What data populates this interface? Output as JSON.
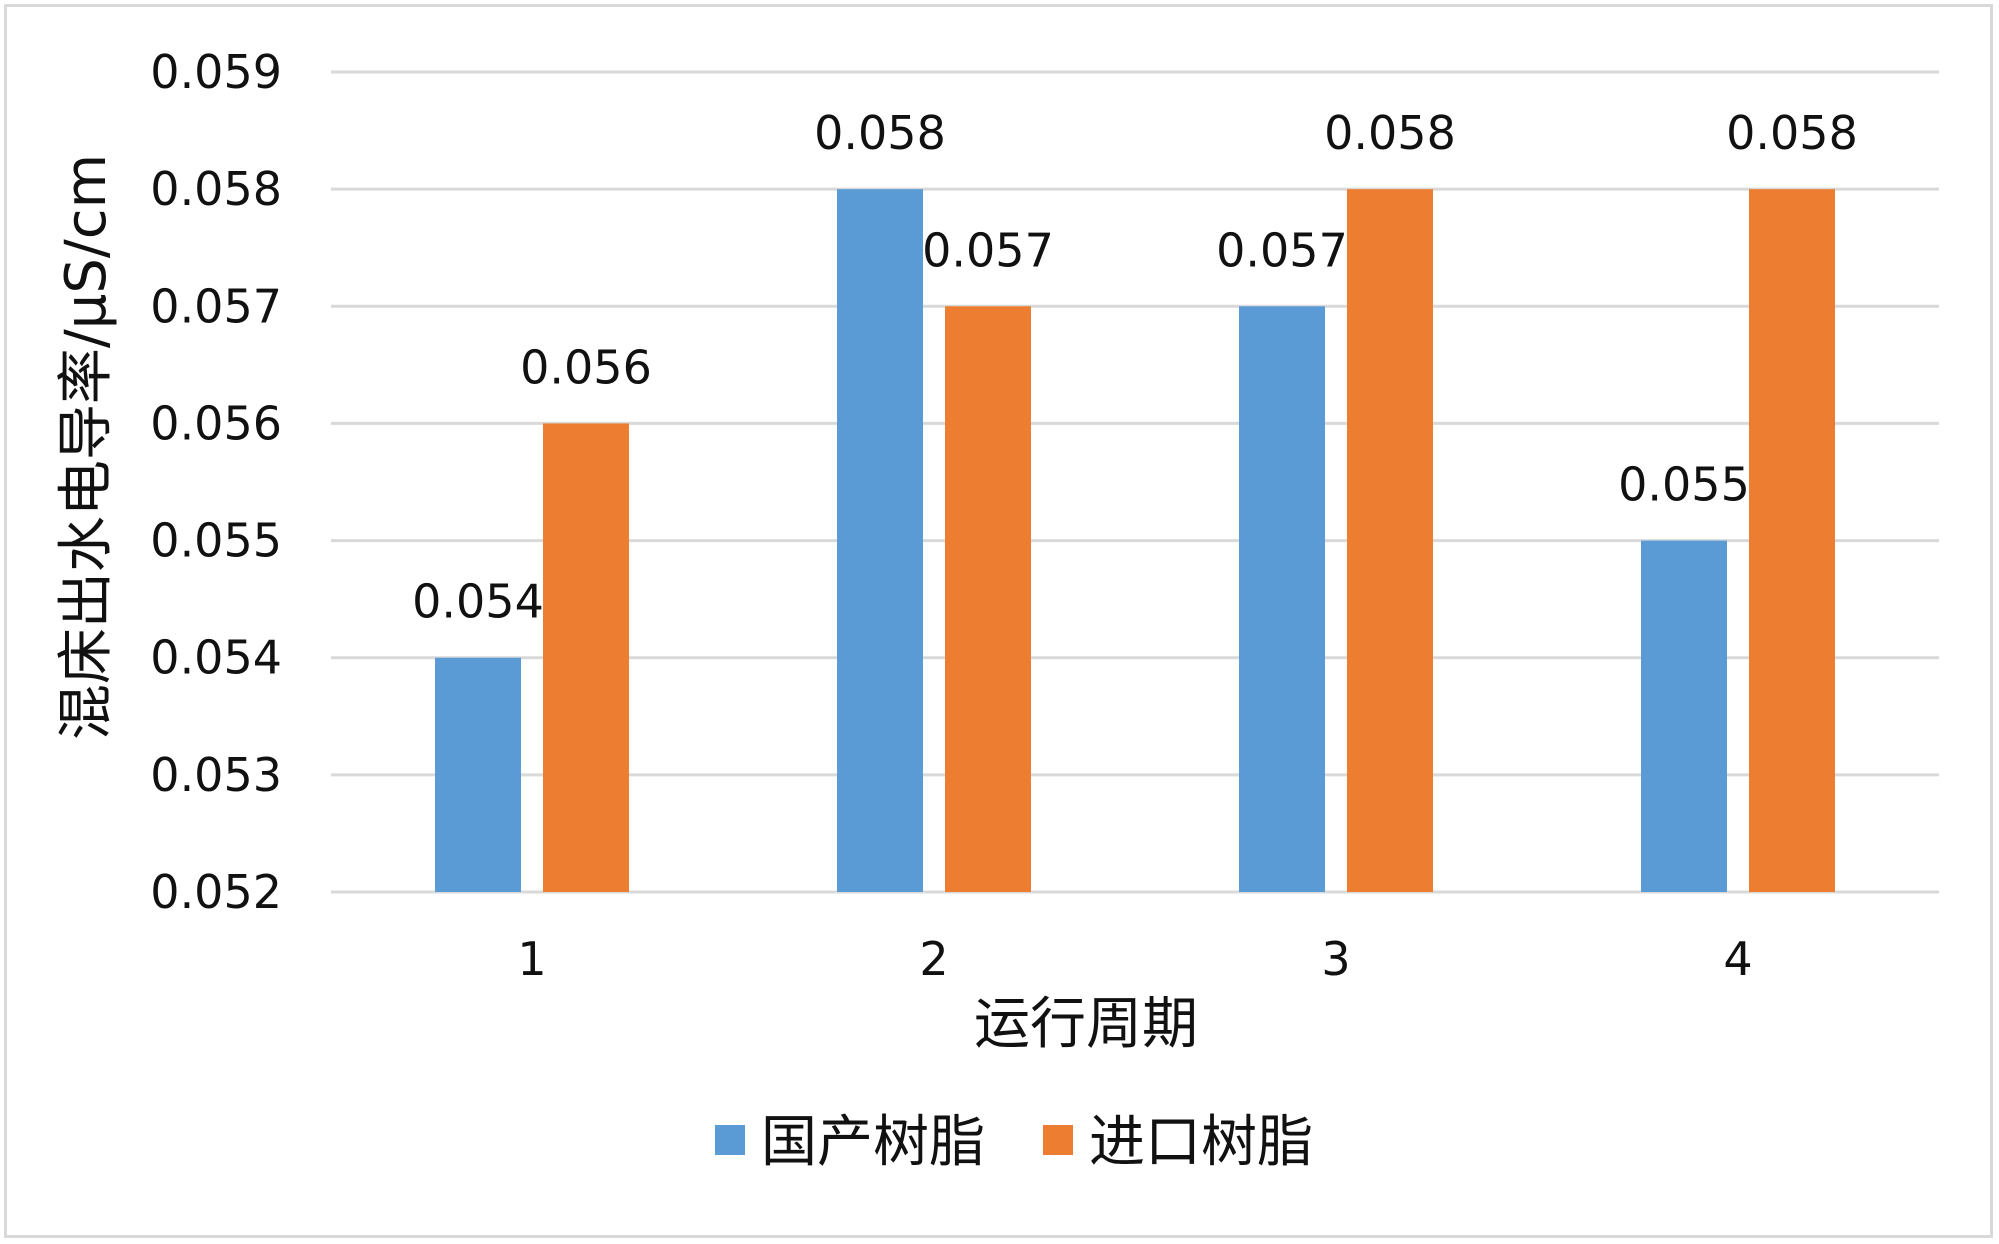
{
  "chart_data": {
    "type": "bar",
    "categories": [
      "1",
      "2",
      "3",
      "4"
    ],
    "series": [
      {
        "name": "国产树脂",
        "color": "#5b9bd5",
        "values": [
          0.054,
          0.058,
          0.057,
          0.055
        ]
      },
      {
        "name": "进口树脂",
        "color": "#ed7d31",
        "values": [
          0.056,
          0.057,
          0.058,
          0.058
        ]
      }
    ],
    "xlabel": "运行周期",
    "ylabel": "混床出水电导率/μS/cm",
    "ylim": [
      0.052,
      0.059
    ],
    "yticks": [
      "0.052",
      "0.053",
      "0.054",
      "0.055",
      "0.056",
      "0.057",
      "0.058",
      "0.059"
    ],
    "data_labels": [
      [
        "0.054",
        "0.058",
        "0.057",
        "0.055"
      ],
      [
        "0.056",
        "0.057",
        "0.058",
        "0.058"
      ]
    ],
    "grid": true,
    "legend": "bottom"
  }
}
